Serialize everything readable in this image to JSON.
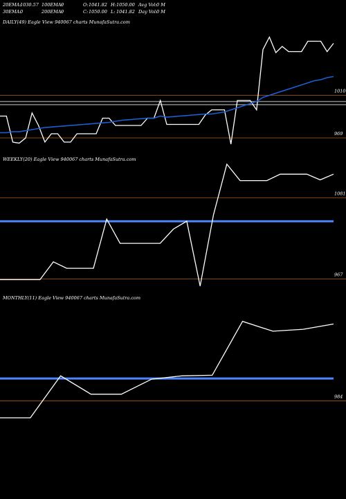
{
  "header": {
    "row1": [
      {
        "label": "20EMA:",
        "value": "1030.57"
      },
      {
        "label": "100EMA:",
        "value": "0"
      },
      {
        "label": "O:",
        "value": "1041.82"
      },
      {
        "label": "H:",
        "value": "1050.00"
      },
      {
        "label": "Avg Vol:",
        "value": "0  M"
      }
    ],
    "row2": [
      {
        "label": "30EMA:",
        "value": "0"
      },
      {
        "label": "200EMA:",
        "value": "0"
      },
      {
        "label": "C:",
        "value": "1050.00"
      },
      {
        "label": "L:",
        "value": "1041.82"
      },
      {
        "label": "Day Vol:",
        "value": "0  M"
      }
    ]
  },
  "colors": {
    "background": "#000000",
    "price_line": "#ffffff",
    "ema_line": "#1f5fd6",
    "level_line": "#4f86ff",
    "grid_orange": "#b0601c",
    "grid_gray": "#8a8a8a",
    "text": "#ffffff"
  },
  "chart_data": [
    {
      "type": "line",
      "panel": "daily",
      "title": "DAILY(49) Eagle  View  940067 charts MunafaSutra.com",
      "ylim": [
        955,
        1075
      ],
      "y_tick_labels": [
        {
          "label": "1010",
          "value": 1010
        },
        {
          "label": "969",
          "value": 969
        }
      ],
      "orange_levels": [
        1010,
        969
      ],
      "gray_levels": [
        1004,
        1001
      ],
      "series": [
        {
          "role": "price",
          "values": [
            990,
            990,
            965,
            964,
            969,
            993,
            981,
            965,
            973,
            973,
            965,
            965,
            973,
            973,
            973,
            973,
            988,
            988,
            981,
            981,
            981,
            981,
            981,
            988,
            988,
            1005,
            982,
            982,
            982,
            982,
            982,
            982,
            991,
            996,
            996,
            996,
            963,
            1005,
            1005,
            1005,
            996,
            1054,
            1066,
            1051,
            1057,
            1052,
            1052,
            1052,
            1062,
            1062,
            1062,
            1052,
            1060
          ]
        },
        {
          "role": "ema",
          "values": [
            974,
            974,
            975,
            975,
            976,
            977,
            978,
            979,
            979.5,
            980,
            980.5,
            981,
            981.5,
            982,
            982.5,
            983,
            983.5,
            984,
            985,
            986,
            986.5,
            987,
            987.5,
            988,
            988,
            990,
            989,
            989.5,
            990,
            990.5,
            991,
            991.5,
            992,
            992,
            993,
            994,
            996,
            998,
            1000,
            1002,
            1004,
            1008,
            1010,
            1012,
            1014,
            1016,
            1018,
            1020,
            1022,
            1024,
            1025,
            1027,
            1028
          ]
        }
      ]
    },
    {
      "type": "line",
      "panel": "weekly",
      "title": "WEEKLY(20) Eagle  View  940067 charts MunafaSutra.com",
      "ylim": [
        950,
        1125
      ],
      "y_tick_labels": [
        {
          "label": "1081",
          "value": 1081
        },
        {
          "label": "967",
          "value": 967
        }
      ],
      "orange_levels": [
        1081,
        967
      ],
      "blue_levels": [
        1048
      ],
      "series": [
        {
          "role": "price",
          "values": [
            966,
            966,
            966,
            966,
            991,
            982,
            982,
            982,
            1051,
            1017,
            1017,
            1017,
            1017,
            1037,
            1048,
            957,
            1057,
            1128,
            1105,
            1105,
            1105,
            1114,
            1114,
            1114,
            1106,
            1114
          ]
        }
      ]
    },
    {
      "type": "line",
      "panel": "monthly",
      "title": "MONTHLY(11) Eagle  View  940067 charts MunafaSutra.com",
      "ylim": [
        940,
        1130
      ],
      "y_tick_labels": [
        {
          "label": "984",
          "value": 984
        }
      ],
      "orange_levels": [
        984
      ],
      "blue_levels": [
        1018
      ],
      "series": [
        {
          "role": "price",
          "values": [
            958,
            958,
            1022,
            994,
            994,
            1017,
            1022,
            1023,
            1105,
            1090,
            1093,
            1101
          ]
        }
      ]
    }
  ]
}
